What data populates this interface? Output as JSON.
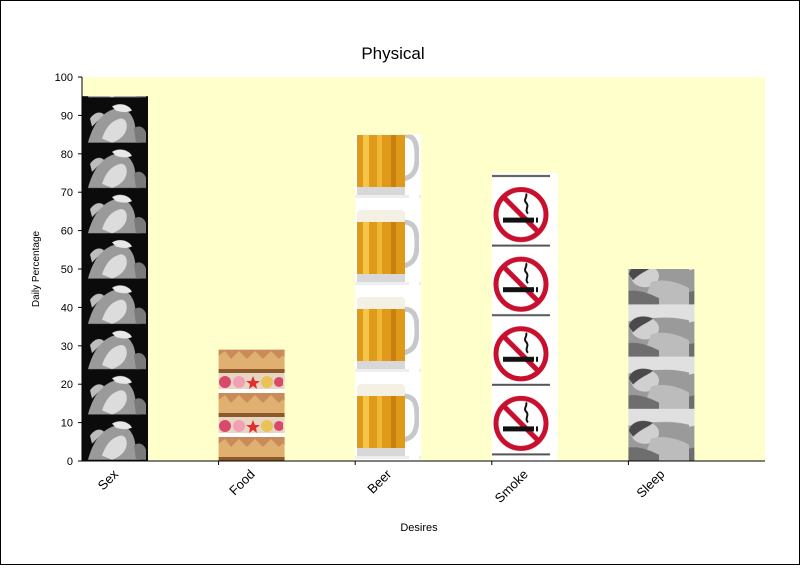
{
  "chart_data": {
    "type": "bar",
    "title": "Physical",
    "xlabel": "Desires",
    "ylabel": "Daily Percentage",
    "categories": [
      "Sex",
      "Food",
      "Beer",
      "Smoke",
      "Sleep"
    ],
    "values": [
      95,
      29,
      85,
      75,
      50
    ],
    "ylim": [
      0,
      100
    ],
    "yticks": [
      0,
      10,
      20,
      30,
      40,
      50,
      60,
      70,
      80,
      90,
      100
    ],
    "grid": false,
    "legend": "none",
    "plot_background": "#ffffcc",
    "bar_fills": [
      {
        "category": "Sex",
        "picture": "black-and-white-couple-photo"
      },
      {
        "category": "Food",
        "picture": "pastries-and-donuts-photo"
      },
      {
        "category": "Beer",
        "picture": "beer-mug-photo"
      },
      {
        "category": "Smoke",
        "picture": "designated-smoking-corner-sign"
      },
      {
        "category": "Sleep",
        "picture": "black-and-white-sleeping-woman-photo"
      }
    ]
  }
}
